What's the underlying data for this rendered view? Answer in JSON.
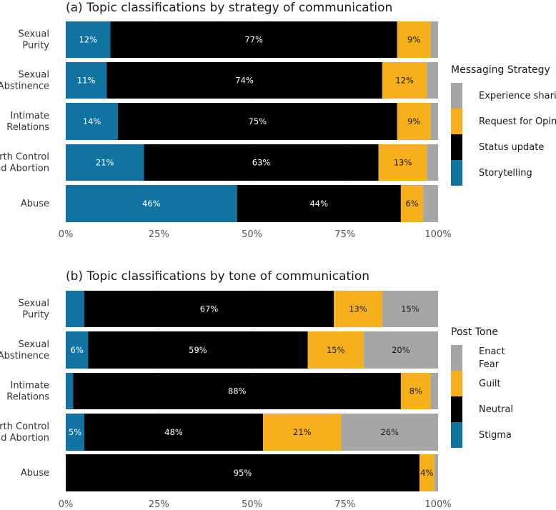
{
  "chart_data": [
    {
      "type": "bar",
      "orientation": "horizontal",
      "stacked": true,
      "title": "(a) Topic classifications by strategy of communication",
      "categories": [
        [
          "Sexual",
          "Purity"
        ],
        [
          "Sexual",
          "Abstinence"
        ],
        [
          "Intimate",
          "Relations"
        ],
        [
          "Birth Control",
          "and Abortion"
        ],
        [
          "Abuse"
        ]
      ],
      "xlim": [
        0,
        100
      ],
      "xticks": [
        "0%",
        "25%",
        "50%",
        "75%",
        "100%"
      ],
      "grid": true,
      "legend": {
        "title": "Messaging Strategy",
        "placement": "right",
        "entries": [
          {
            "label": "Experience sharing",
            "color": "#a6a6a6"
          },
          {
            "label": "Request for Opinion",
            "color": "#f5b01b"
          },
          {
            "label": "Status update",
            "color": "#000000"
          },
          {
            "label": "Storytelling",
            "color": "#11739f"
          }
        ]
      },
      "series": [
        {
          "name": "Storytelling",
          "color": "#11739f",
          "label_color": "#ffffff",
          "values": [
            12,
            11,
            14,
            21,
            46
          ],
          "labels": [
            "12%",
            "11%",
            "14%",
            "21%",
            "46%"
          ]
        },
        {
          "name": "Status update",
          "color": "#000000",
          "label_color": "#ffffff",
          "values": [
            77,
            74,
            75,
            63,
            44
          ],
          "labels": [
            "77%",
            "74%",
            "75%",
            "63%",
            "44%"
          ]
        },
        {
          "name": "Request for Opinion",
          "color": "#f5b01b",
          "label_color": "#1a1a1a",
          "values": [
            9,
            12,
            9,
            13,
            6
          ],
          "labels": [
            "9%",
            "12%",
            "9%",
            "13%",
            "6%"
          ]
        },
        {
          "name": "Experience sharing",
          "color": "#a6a6a6",
          "label_color": "#1a1a1a",
          "values": [
            2,
            3,
            2,
            3,
            4
          ],
          "labels": [
            "",
            "",
            "",
            "",
            ""
          ]
        }
      ]
    },
    {
      "type": "bar",
      "orientation": "horizontal",
      "stacked": true,
      "title": "(b) Topic classifications by tone of communication",
      "categories": [
        [
          "Sexual",
          "Purity"
        ],
        [
          "Sexual",
          "Abstinence"
        ],
        [
          "Intimate",
          "Relations"
        ],
        [
          "Birth Control",
          "and Abortion"
        ],
        [
          "Abuse"
        ]
      ],
      "xlim": [
        0,
        100
      ],
      "xticks": [
        "0%",
        "25%",
        "50%",
        "75%",
        "100%"
      ],
      "grid": true,
      "legend": {
        "title": "Post Tone",
        "placement": "right",
        "entries": [
          {
            "label": [
              "Enact",
              "Fear"
            ],
            "color": "#a6a6a6"
          },
          {
            "label": "Guilt",
            "color": "#f5b01b"
          },
          {
            "label": "Neutral",
            "color": "#000000"
          },
          {
            "label": "Stigma",
            "color": "#11739f"
          }
        ]
      },
      "series": [
        {
          "name": "Stigma",
          "color": "#11739f",
          "label_color": "#ffffff",
          "values": [
            5,
            6,
            2,
            5,
            0
          ],
          "labels": [
            "",
            "6%",
            "",
            "5%",
            ""
          ]
        },
        {
          "name": "Neutral",
          "color": "#000000",
          "label_color": "#ffffff",
          "values": [
            67,
            59,
            88,
            48,
            95
          ],
          "labels": [
            "67%",
            "59%",
            "88%",
            "48%",
            "95%"
          ]
        },
        {
          "name": "Guilt",
          "color": "#f5b01b",
          "label_color": "#1a1a1a",
          "values": [
            13,
            15,
            8,
            21,
            4
          ],
          "labels": [
            "13%",
            "15%",
            "8%",
            "21%",
            "4%"
          ]
        },
        {
          "name": "Enact Fear",
          "color": "#a6a6a6",
          "label_color": "#1a1a1a",
          "values": [
            15,
            20,
            2,
            26,
            1
          ],
          "labels": [
            "15%",
            "20%",
            "",
            "26%",
            ""
          ]
        }
      ]
    }
  ]
}
